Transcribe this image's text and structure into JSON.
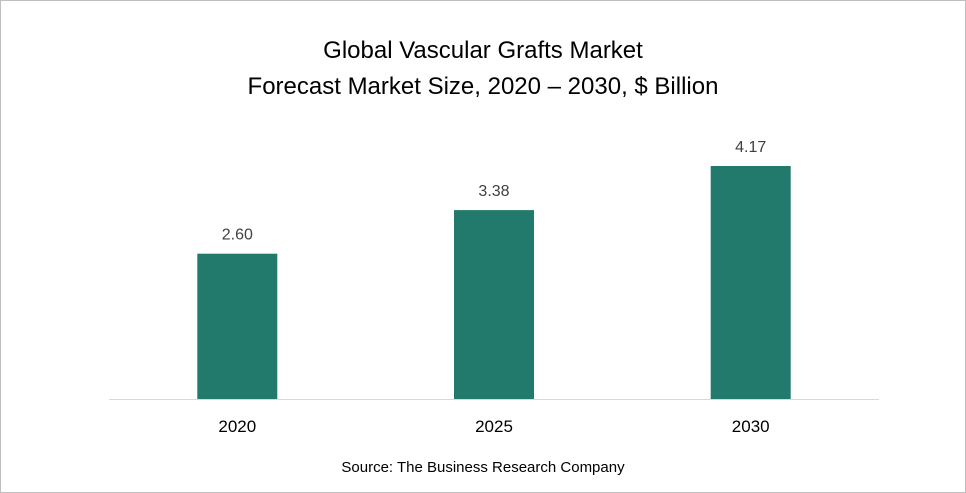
{
  "chart_data": {
    "type": "bar",
    "title": "Global Vascular Grafts Market",
    "subtitle": "Forecast Market Size, 2020 – 2030, $ Billion",
    "categories": [
      "2020",
      "2025",
      "2030"
    ],
    "values": [
      2.6,
      3.38,
      4.17
    ],
    "data_labels": [
      "2.60",
      "3.38",
      "4.17"
    ],
    "xlabel": "",
    "ylabel": "",
    "ylim": [
      0,
      4.5
    ],
    "grid": false,
    "legend": "none",
    "bar_color": "#217A6B",
    "source": "Source: The Business Research Company"
  }
}
